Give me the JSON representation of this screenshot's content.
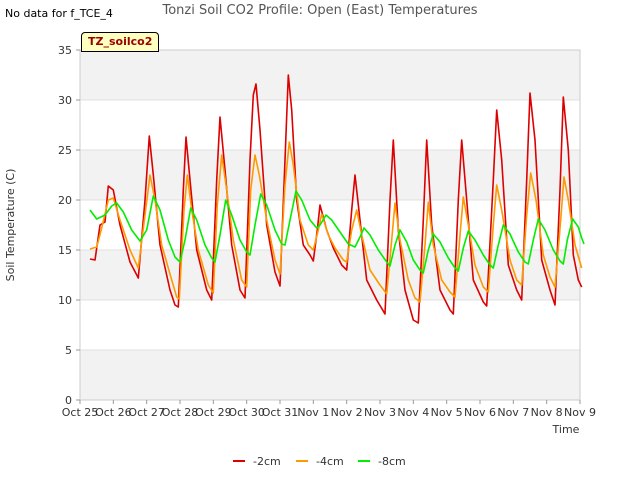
{
  "header": {
    "nodata_text": "No data for f_TCE_4",
    "title": "Tonzi Soil CO2 Profile: Open (East) Temperatures",
    "badge": "TZ_soilco2"
  },
  "chart_data": {
    "type": "line",
    "title": "Tonzi Soil CO2 Profile: Open (East) Temperatures",
    "xlabel": "Time",
    "ylabel": "Soil Temperature (C)",
    "ylim": [
      0,
      35
    ],
    "yticks": [
      0,
      5,
      10,
      15,
      20,
      25,
      30,
      35
    ],
    "xlim": [
      0,
      15
    ],
    "xticks": [
      {
        "pos": 0,
        "label": "Oct 25"
      },
      {
        "pos": 1,
        "label": "Oct 26"
      },
      {
        "pos": 2,
        "label": "Oct 27"
      },
      {
        "pos": 3,
        "label": "Oct 28"
      },
      {
        "pos": 4,
        "label": "Oct 29"
      },
      {
        "pos": 5,
        "label": "Oct 30"
      },
      {
        "pos": 6,
        "label": "Oct 31"
      },
      {
        "pos": 7,
        "label": "Nov 1"
      },
      {
        "pos": 8,
        "label": "Nov 2"
      },
      {
        "pos": 9,
        "label": "Nov 3"
      },
      {
        "pos": 10,
        "label": "Nov 4"
      },
      {
        "pos": 11,
        "label": "Nov 5"
      },
      {
        "pos": 12,
        "label": "Nov 6"
      },
      {
        "pos": 13,
        "label": "Nov 7"
      },
      {
        "pos": 14,
        "label": "Nov 8"
      },
      {
        "pos": 15,
        "label": "Nov 9"
      }
    ],
    "grid": true,
    "legend_position": "bottom",
    "series": [
      {
        "name": "-2cm",
        "color": "#dd0000",
        "points": [
          [
            0.3,
            14.1
          ],
          [
            0.45,
            14.0
          ],
          [
            0.6,
            17.5
          ],
          [
            0.75,
            17.8
          ],
          [
            0.85,
            21.4
          ],
          [
            1.0,
            21.0
          ],
          [
            1.2,
            17.5
          ],
          [
            1.5,
            13.8
          ],
          [
            1.75,
            12.2
          ],
          [
            1.95,
            20.0
          ],
          [
            2.08,
            26.4
          ],
          [
            2.2,
            22.5
          ],
          [
            2.4,
            15.5
          ],
          [
            2.7,
            11.0
          ],
          [
            2.85,
            9.5
          ],
          [
            2.95,
            9.3
          ],
          [
            3.1,
            21.0
          ],
          [
            3.18,
            26.3
          ],
          [
            3.3,
            22.0
          ],
          [
            3.5,
            15.0
          ],
          [
            3.8,
            11.0
          ],
          [
            3.95,
            10.0
          ],
          [
            4.1,
            22.0
          ],
          [
            4.2,
            28.3
          ],
          [
            4.35,
            23.0
          ],
          [
            4.55,
            15.5
          ],
          [
            4.8,
            11.0
          ],
          [
            4.95,
            10.2
          ],
          [
            5.1,
            24.0
          ],
          [
            5.2,
            30.5
          ],
          [
            5.28,
            31.6
          ],
          [
            5.4,
            27.0
          ],
          [
            5.6,
            17.5
          ],
          [
            5.85,
            12.8
          ],
          [
            6.0,
            11.4
          ],
          [
            6.15,
            24.0
          ],
          [
            6.25,
            32.5
          ],
          [
            6.35,
            29.0
          ],
          [
            6.5,
            20.0
          ],
          [
            6.7,
            15.5
          ],
          [
            6.9,
            14.5
          ],
          [
            7.0,
            13.9
          ],
          [
            7.12,
            17.0
          ],
          [
            7.2,
            19.5
          ],
          [
            7.4,
            17.0
          ],
          [
            7.6,
            15.2
          ],
          [
            7.85,
            13.5
          ],
          [
            8.0,
            13.0
          ],
          [
            8.15,
            19.0
          ],
          [
            8.25,
            22.5
          ],
          [
            8.4,
            18.0
          ],
          [
            8.6,
            12.0
          ],
          [
            8.9,
            10.0
          ],
          [
            9.15,
            8.6
          ],
          [
            9.3,
            20.0
          ],
          [
            9.4,
            26.0
          ],
          [
            9.55,
            17.0
          ],
          [
            9.75,
            11.0
          ],
          [
            10.0,
            8.0
          ],
          [
            10.15,
            7.7
          ],
          [
            10.3,
            18.0
          ],
          [
            10.4,
            26.0
          ],
          [
            10.55,
            17.5
          ],
          [
            10.8,
            11.0
          ],
          [
            11.1,
            9.0
          ],
          [
            11.2,
            8.6
          ],
          [
            11.35,
            20.0
          ],
          [
            11.45,
            26.0
          ],
          [
            11.6,
            20.0
          ],
          [
            11.8,
            12.0
          ],
          [
            12.1,
            9.8
          ],
          [
            12.2,
            9.4
          ],
          [
            12.4,
            22.0
          ],
          [
            12.5,
            29.0
          ],
          [
            12.65,
            24.0
          ],
          [
            12.85,
            13.5
          ],
          [
            13.1,
            11.0
          ],
          [
            13.25,
            10.0
          ],
          [
            13.4,
            22.0
          ],
          [
            13.5,
            30.7
          ],
          [
            13.65,
            26.0
          ],
          [
            13.85,
            14.0
          ],
          [
            14.1,
            11.0
          ],
          [
            14.25,
            9.5
          ],
          [
            14.4,
            21.0
          ],
          [
            14.5,
            30.3
          ],
          [
            14.65,
            25.0
          ],
          [
            14.8,
            14.5
          ],
          [
            14.95,
            12.0
          ],
          [
            15.05,
            11.3
          ]
        ]
      },
      {
        "name": "-4cm",
        "color": "#ff9900",
        "points": [
          [
            0.3,
            15.1
          ],
          [
            0.5,
            15.3
          ],
          [
            0.65,
            17.2
          ],
          [
            0.85,
            20.0
          ],
          [
            1.0,
            20.2
          ],
          [
            1.2,
            18.0
          ],
          [
            1.5,
            15.0
          ],
          [
            1.75,
            13.2
          ],
          [
            1.95,
            18.5
          ],
          [
            2.1,
            22.5
          ],
          [
            2.25,
            20.0
          ],
          [
            2.45,
            15.5
          ],
          [
            2.75,
            12.0
          ],
          [
            2.9,
            10.3
          ],
          [
            2.98,
            10.1
          ],
          [
            3.12,
            19.0
          ],
          [
            3.22,
            22.5
          ],
          [
            3.35,
            19.0
          ],
          [
            3.55,
            15.0
          ],
          [
            3.85,
            11.5
          ],
          [
            4.0,
            10.7
          ],
          [
            4.12,
            19.5
          ],
          [
            4.25,
            24.5
          ],
          [
            4.4,
            21.0
          ],
          [
            4.6,
            16.0
          ],
          [
            4.85,
            12.0
          ],
          [
            5.0,
            11.3
          ],
          [
            5.12,
            21.0
          ],
          [
            5.25,
            24.5
          ],
          [
            5.38,
            22.5
          ],
          [
            5.6,
            18.0
          ],
          [
            5.85,
            14.0
          ],
          [
            6.0,
            12.6
          ],
          [
            6.15,
            21.5
          ],
          [
            6.28,
            25.8
          ],
          [
            6.4,
            23.5
          ],
          [
            6.6,
            18.0
          ],
          [
            6.85,
            15.5
          ],
          [
            7.0,
            15.0
          ],
          [
            7.15,
            17.0
          ],
          [
            7.25,
            18.6
          ],
          [
            7.45,
            16.5
          ],
          [
            7.65,
            15.2
          ],
          [
            7.9,
            14.0
          ],
          [
            8.0,
            13.8
          ],
          [
            8.15,
            17.0
          ],
          [
            8.3,
            19.0
          ],
          [
            8.45,
            16.5
          ],
          [
            8.7,
            13.0
          ],
          [
            9.0,
            11.5
          ],
          [
            9.2,
            10.6
          ],
          [
            9.35,
            16.0
          ],
          [
            9.45,
            19.7
          ],
          [
            9.6,
            16.0
          ],
          [
            9.85,
            12.0
          ],
          [
            10.05,
            10.2
          ],
          [
            10.2,
            9.8
          ],
          [
            10.35,
            15.5
          ],
          [
            10.45,
            19.8
          ],
          [
            10.6,
            15.5
          ],
          [
            10.85,
            12.0
          ],
          [
            11.1,
            10.8
          ],
          [
            11.25,
            10.3
          ],
          [
            11.4,
            16.5
          ],
          [
            11.5,
            20.3
          ],
          [
            11.65,
            17.5
          ],
          [
            11.85,
            13.5
          ],
          [
            12.1,
            11.3
          ],
          [
            12.25,
            10.8
          ],
          [
            12.4,
            17.5
          ],
          [
            12.5,
            21.5
          ],
          [
            12.65,
            19.0
          ],
          [
            12.9,
            14.0
          ],
          [
            13.1,
            12.0
          ],
          [
            13.25,
            11.5
          ],
          [
            13.4,
            18.5
          ],
          [
            13.52,
            22.7
          ],
          [
            13.68,
            20.0
          ],
          [
            13.9,
            14.5
          ],
          [
            14.1,
            12.3
          ],
          [
            14.25,
            11.3
          ],
          [
            14.42,
            18.0
          ],
          [
            14.52,
            22.3
          ],
          [
            14.65,
            20.0
          ],
          [
            14.85,
            15.5
          ],
          [
            15.05,
            13.2
          ]
        ]
      },
      {
        "name": "-8cm",
        "color": "#00ee00",
        "points": [
          [
            0.3,
            19.0
          ],
          [
            0.5,
            18.1
          ],
          [
            0.75,
            18.5
          ],
          [
            0.95,
            19.4
          ],
          [
            1.1,
            19.7
          ],
          [
            1.3,
            18.8
          ],
          [
            1.55,
            17.0
          ],
          [
            1.8,
            15.9
          ],
          [
            2.0,
            17.0
          ],
          [
            2.2,
            20.4
          ],
          [
            2.4,
            19.0
          ],
          [
            2.65,
            16.0
          ],
          [
            2.85,
            14.3
          ],
          [
            3.0,
            13.8
          ],
          [
            3.15,
            16.0
          ],
          [
            3.32,
            19.2
          ],
          [
            3.5,
            18.0
          ],
          [
            3.75,
            15.5
          ],
          [
            3.95,
            14.2
          ],
          [
            4.05,
            13.8
          ],
          [
            4.2,
            16.5
          ],
          [
            4.37,
            20.0
          ],
          [
            4.55,
            18.5
          ],
          [
            4.8,
            16.0
          ],
          [
            5.0,
            14.8
          ],
          [
            5.1,
            14.5
          ],
          [
            5.25,
            17.5
          ],
          [
            5.42,
            20.6
          ],
          [
            5.6,
            19.5
          ],
          [
            5.85,
            17.0
          ],
          [
            6.05,
            15.6
          ],
          [
            6.15,
            15.5
          ],
          [
            6.3,
            18.0
          ],
          [
            6.48,
            20.9
          ],
          [
            6.65,
            20.0
          ],
          [
            6.9,
            18.0
          ],
          [
            7.1,
            17.2
          ],
          [
            7.2,
            17.5
          ],
          [
            7.38,
            18.5
          ],
          [
            7.55,
            18.0
          ],
          [
            7.8,
            16.8
          ],
          [
            8.05,
            15.6
          ],
          [
            8.25,
            15.3
          ],
          [
            8.4,
            16.3
          ],
          [
            8.52,
            17.2
          ],
          [
            8.7,
            16.5
          ],
          [
            8.95,
            15.0
          ],
          [
            9.2,
            13.8
          ],
          [
            9.3,
            13.4
          ],
          [
            9.45,
            15.5
          ],
          [
            9.6,
            17.0
          ],
          [
            9.8,
            15.8
          ],
          [
            10.0,
            14.0
          ],
          [
            10.2,
            13.0
          ],
          [
            10.3,
            12.7
          ],
          [
            10.45,
            15.0
          ],
          [
            10.6,
            16.6
          ],
          [
            10.8,
            15.8
          ],
          [
            11.05,
            14.2
          ],
          [
            11.25,
            13.2
          ],
          [
            11.35,
            12.9
          ],
          [
            11.5,
            15.2
          ],
          [
            11.65,
            16.9
          ],
          [
            11.85,
            16.0
          ],
          [
            12.1,
            14.5
          ],
          [
            12.3,
            13.5
          ],
          [
            12.4,
            13.2
          ],
          [
            12.55,
            15.5
          ],
          [
            12.7,
            17.5
          ],
          [
            12.9,
            16.6
          ],
          [
            13.15,
            14.8
          ],
          [
            13.35,
            13.8
          ],
          [
            13.45,
            13.6
          ],
          [
            13.6,
            16.0
          ],
          [
            13.75,
            18.1
          ],
          [
            13.95,
            17.0
          ],
          [
            14.2,
            15.0
          ],
          [
            14.4,
            13.9
          ],
          [
            14.5,
            13.6
          ],
          [
            14.62,
            16.0
          ],
          [
            14.78,
            18.1
          ],
          [
            14.95,
            17.3
          ],
          [
            15.05,
            16.2
          ],
          [
            15.12,
            15.6
          ]
        ]
      }
    ]
  }
}
